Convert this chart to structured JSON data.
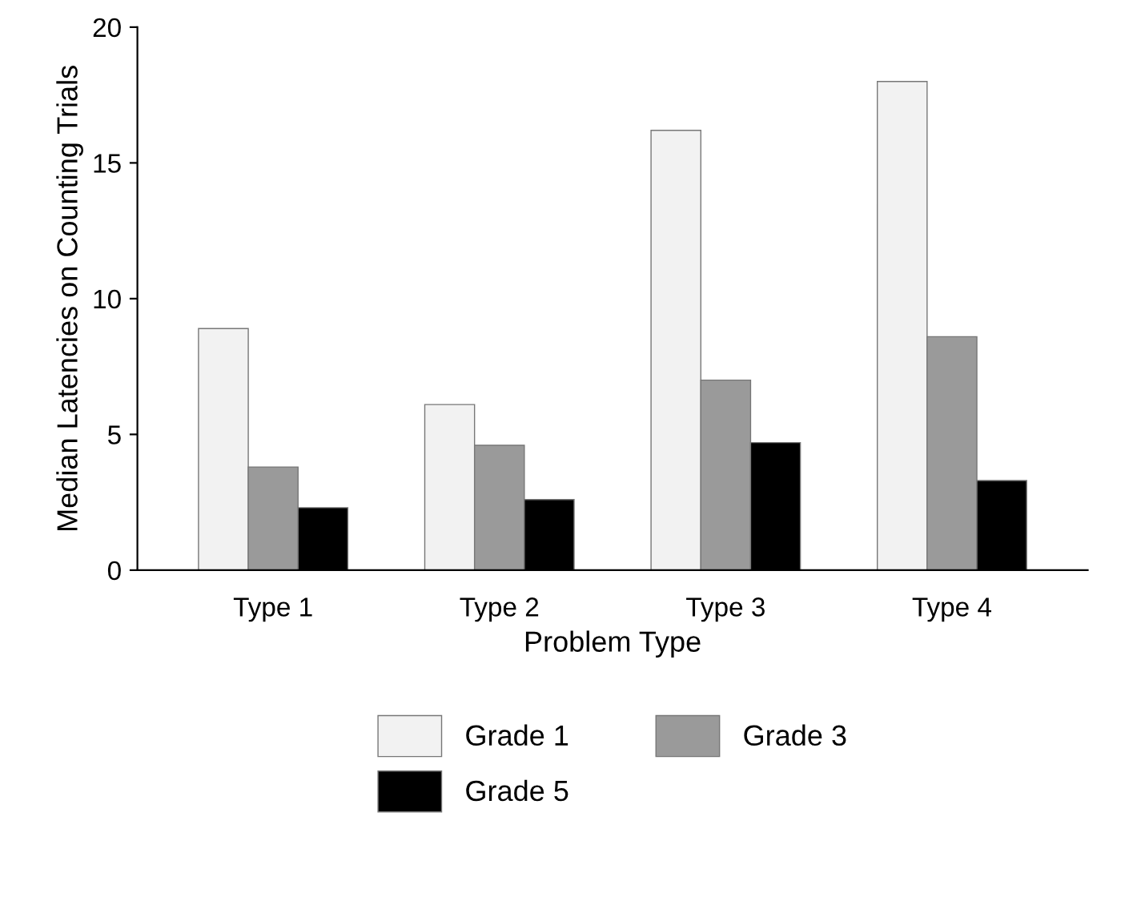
{
  "chart_data": {
    "type": "bar",
    "xlabel": "Problem Type",
    "ylabel": "Median Latencies on Counting Trials",
    "categories": [
      "Type 1",
      "Type 2",
      "Type 3",
      "Type 4"
    ],
    "series": [
      {
        "name": "Grade 1",
        "color": "#f2f2f2",
        "values": [
          8.9,
          6.1,
          16.2,
          18.0
        ]
      },
      {
        "name": "Grade 3",
        "color": "#9a9a9a",
        "values": [
          3.8,
          4.6,
          7.0,
          8.6
        ]
      },
      {
        "name": "Grade 5",
        "color": "#000000",
        "values": [
          2.3,
          2.6,
          4.7,
          3.3
        ]
      }
    ],
    "ylim": [
      0,
      20
    ],
    "yticks": [
      0,
      5,
      10,
      15,
      20
    ],
    "grid": false,
    "legend": "bottom"
  }
}
